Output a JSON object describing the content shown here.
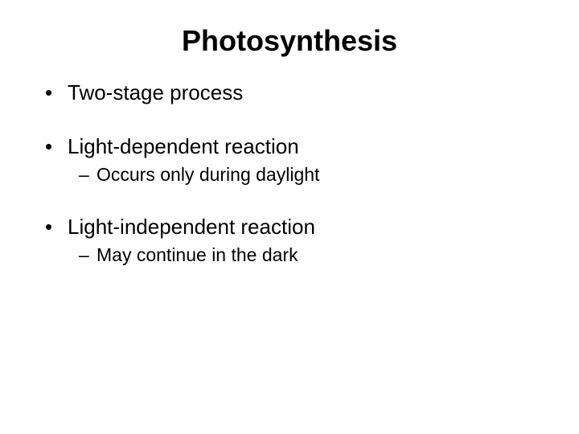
{
  "slide": {
    "title": "Photosynthesis",
    "title_fontsize": 36,
    "title_fontweight": "bold",
    "background_color": "#ffffff",
    "text_color": "#000000",
    "bullet_fontsize": 26,
    "sub_fontsize": 23,
    "bullet_marker": "•",
    "sub_marker": "–",
    "items": [
      {
        "text": "Two-stage process",
        "subs": []
      },
      {
        "text": "Light-dependent reaction",
        "subs": [
          "Occurs only during daylight"
        ]
      },
      {
        "text": "Light-independent reaction",
        "subs": [
          "May continue in the dark"
        ]
      }
    ]
  }
}
